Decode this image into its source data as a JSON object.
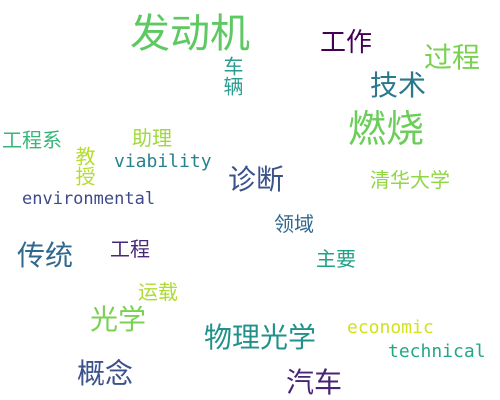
{
  "word_cloud": {
    "words": [
      {
        "text": "发动机",
        "color": "#5ec962"
      },
      {
        "text": "工作",
        "color": "#440154"
      },
      {
        "text": "过程",
        "color": "#7ad151"
      },
      {
        "text": "车辆",
        "color": "#2a9d8f"
      },
      {
        "text": "技术",
        "color": "#2a788e"
      },
      {
        "text": "燃烧",
        "color": "#6ccd5a"
      },
      {
        "text": "工程系",
        "color": "#35b779"
      },
      {
        "text": "助理",
        "color": "#9fda3a"
      },
      {
        "text": "教授",
        "color": "#b5de2b"
      },
      {
        "text": "viability",
        "color": "#26828e"
      },
      {
        "text": "诊断",
        "color": "#3b528b"
      },
      {
        "text": "清华大学",
        "color": "#90d743"
      },
      {
        "text": "environmental",
        "color": "#3e4989"
      },
      {
        "text": "领域",
        "color": "#31688e"
      },
      {
        "text": "传统",
        "color": "#31688e"
      },
      {
        "text": "工程",
        "color": "#482878"
      },
      {
        "text": "主要",
        "color": "#1fa187"
      },
      {
        "text": "运载",
        "color": "#addc30"
      },
      {
        "text": "光学",
        "color": "#7ad151"
      },
      {
        "text": "物理光学",
        "color": "#21918c"
      },
      {
        "text": "economic",
        "color": "#d2e21b"
      },
      {
        "text": "technical",
        "color": "#22a884"
      },
      {
        "text": "概念",
        "color": "#3b528b"
      },
      {
        "text": "汽车",
        "color": "#482475"
      }
    ]
  }
}
